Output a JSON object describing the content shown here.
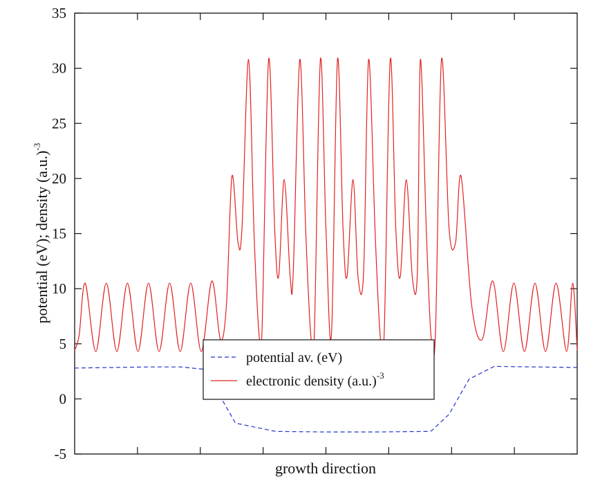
{
  "chart_data": {
    "type": "line",
    "title": "",
    "xlabel": "growth direction",
    "ylabel": "potential (eV); density (a.u.)",
    "ylabel_superscript": "-3",
    "ylim": [
      -5,
      35
    ],
    "xlim": [
      0,
      100
    ],
    "yticks": [
      -5,
      0,
      5,
      10,
      15,
      20,
      25,
      30,
      35
    ],
    "ytick_labels": [
      "-5",
      "0",
      "5",
      "10",
      "15",
      "20",
      "25",
      "30",
      "35"
    ],
    "xticks_count": 7,
    "grid": false,
    "legend_position": "lower-center",
    "series": [
      {
        "name": "potential av. (eV)",
        "style": "dashed",
        "color": "#2233cc",
        "x": [
          0,
          15,
          21,
          25.5,
          29.5,
          32,
          40,
          50,
          60,
          70,
          71,
          74.5,
          78.5,
          83.5,
          100
        ],
        "y": [
          2.8,
          2.9,
          2.9,
          2.7,
          -0.2,
          -2.2,
          -2.95,
          -3.0,
          -3.0,
          -2.95,
          -2.9,
          -1.4,
          1.8,
          2.95,
          2.85
        ]
      },
      {
        "name": "electronic density (a.u.)",
        "name_superscript": "-3",
        "style": "solid",
        "color": "#e02020",
        "x": [
          0,
          0.9,
          2.1,
          4.2,
          6.3,
          8.4,
          10.5,
          12.6,
          14.7,
          16.8,
          18.9,
          21,
          23.1,
          25.2,
          27.3,
          29,
          30.2,
          31.3,
          32.5,
          33.3,
          34.6,
          35.7,
          36.7,
          37.3,
          38.6,
          39.8,
          40.6,
          41.7,
          42.9,
          43.5,
          44.8,
          46,
          47,
          47.7,
          48.9,
          50,
          51.1,
          52.3,
          53.4,
          54.2,
          55.4,
          56.4,
          57.5,
          58.5,
          59.8,
          60.8,
          61.6,
          62.8,
          63.9,
          64.8,
          66,
          67.2,
          68.2,
          68.8,
          70,
          70.9,
          71.8,
          73,
          74.5,
          75.8,
          76.9,
          79,
          81.1,
          83.2,
          85.3,
          87.4,
          89.5,
          91.6,
          93.7,
          95.8,
          97.9,
          99.1,
          100
        ],
        "y": [
          4.4,
          5.8,
          10.5,
          4.3,
          10.5,
          4.3,
          10.5,
          4.3,
          10.5,
          4.3,
          10.5,
          4.3,
          10.5,
          4.3,
          10.7,
          5.4,
          8.5,
          20.2,
          14.2,
          15.5,
          30.8,
          15,
          5.8,
          6.5,
          30.8,
          15.5,
          11.1,
          19.9,
          11,
          11.5,
          30.8,
          15,
          5.7,
          6,
          30.8,
          15.5,
          5.8,
          30.8,
          15.5,
          11.1,
          19.9,
          11,
          11.5,
          30.8,
          15,
          5.7,
          6,
          30.8,
          15.5,
          11.1,
          19.9,
          11,
          11.5,
          30.8,
          15,
          5.8,
          6,
          30.8,
          15.5,
          14.2,
          20.2,
          8.5,
          5.4,
          10.7,
          4.3,
          10.5,
          4.3,
          10.5,
          4.3,
          10.5,
          4.3,
          10.5,
          4.4
        ]
      }
    ]
  }
}
